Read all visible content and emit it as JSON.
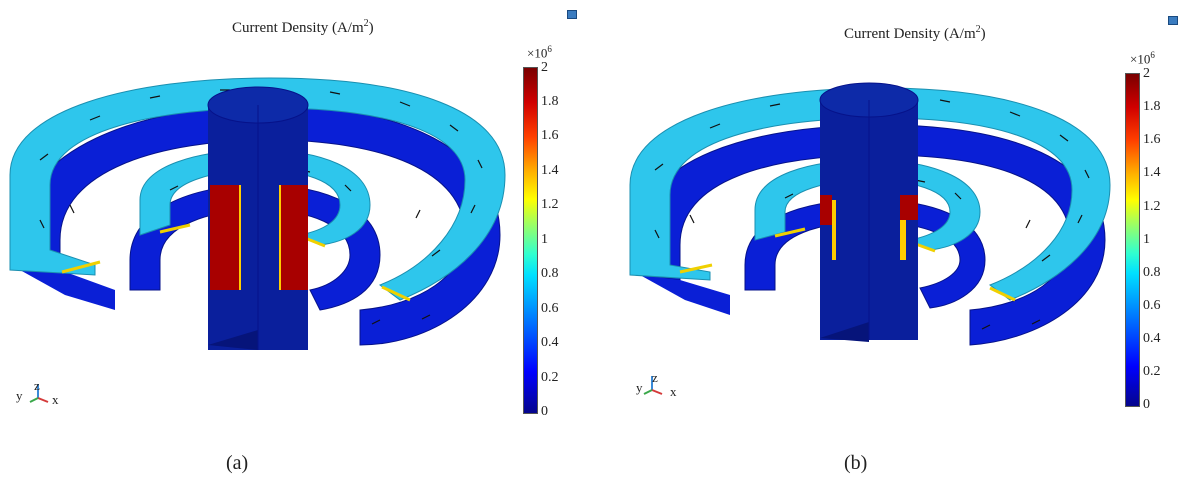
{
  "panels": [
    {
      "title_text": "Current Density (A/m",
      "title_unit_exp": "2",
      "title_close": ")",
      "multiplier_base": "×10",
      "multiplier_exp": "6",
      "colorbar_ticks": [
        "2",
        "1.8",
        "1.6",
        "1.4",
        "1.2",
        "1",
        "0.8",
        "0.6",
        "0.4",
        "0.2",
        "0"
      ],
      "axis_labels": {
        "y": "y",
        "z": "z",
        "x": "x"
      },
      "subfigure_label": "(a)"
    },
    {
      "title_text": "Current Density (A/m",
      "title_unit_exp": "2",
      "title_close": ")",
      "multiplier_base": "×10",
      "multiplier_exp": "6",
      "colorbar_ticks": [
        "2",
        "1.8",
        "1.6",
        "1.4",
        "1.2",
        "1",
        "0.8",
        "0.6",
        "0.4",
        "0.2",
        "0"
      ],
      "axis_labels": {
        "y": "y",
        "z": "z",
        "x": "x"
      },
      "subfigure_label": "(b)"
    }
  ],
  "colors": {
    "coil_light": "#2ec6ec",
    "coil_dark": "#0a1fd6",
    "core": "#0a1f9c",
    "hot": "#a80000",
    "edge": "#f0d000"
  }
}
